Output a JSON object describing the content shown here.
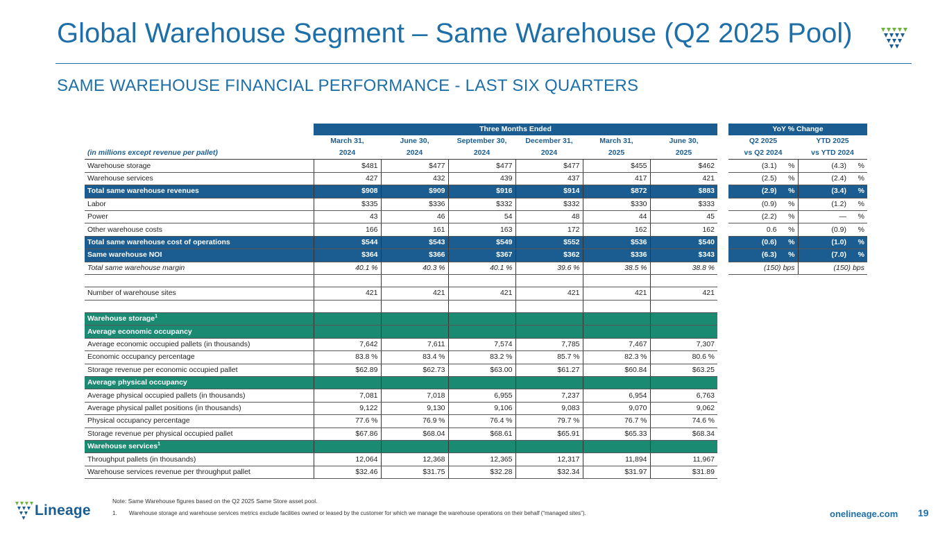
{
  "title": "Global Warehouse Segment – Same Warehouse (Q2 2025 Pool)",
  "subtitle": "SAME WAREHOUSE FINANCIAL PERFORMANCE - LAST SIX QUARTERS",
  "colors": {
    "primary": "#1b5d91",
    "accent": "#1a8a73",
    "logo_green": "#6cb33f"
  },
  "table": {
    "group_headers": {
      "three_months": "Three Months Ended",
      "yoy": "YoY % Change"
    },
    "label_header": "(in millions except revenue per pallet)",
    "columns": [
      {
        "line1": "March 31,",
        "line2": "2024"
      },
      {
        "line1": "June 30,",
        "line2": "2024"
      },
      {
        "line1": "September 30,",
        "line2": "2024"
      },
      {
        "line1": "December 31,",
        "line2": "2024"
      },
      {
        "line1": "March 31,",
        "line2": "2025"
      },
      {
        "line1": "June 30,",
        "line2": "2025"
      }
    ],
    "yoy_columns": [
      {
        "line1": "Q2 2025",
        "line2": "vs Q2 2024"
      },
      {
        "line1": "YTD 2025",
        "line2": "vs YTD 2024"
      }
    ],
    "rows": [
      {
        "label": "Warehouse storage",
        "values": [
          "$481",
          "$477",
          "$477",
          "$477",
          "$455",
          "$462"
        ],
        "yoy": [
          "(3.1)",
          "(4.3)"
        ],
        "yoy_unit": "%"
      },
      {
        "label": "Warehouse services",
        "values": [
          "427",
          "432",
          "439",
          "437",
          "417",
          "421"
        ],
        "yoy": [
          "(2.5)",
          "(2.4)"
        ],
        "yoy_unit": "%"
      },
      {
        "label": "Total same warehouse revenues",
        "values": [
          "$908",
          "$909",
          "$916",
          "$914",
          "$872",
          "$883"
        ],
        "yoy": [
          "(2.9)",
          "(3.4)"
        ],
        "yoy_unit": "%",
        "style": "blue"
      },
      {
        "label": "Labor",
        "values": [
          "$335",
          "$336",
          "$332",
          "$332",
          "$330",
          "$333"
        ],
        "yoy": [
          "(0.9)",
          "(1.2)"
        ],
        "yoy_unit": "%"
      },
      {
        "label": "Power",
        "values": [
          "43",
          "46",
          "54",
          "48",
          "44",
          "45"
        ],
        "yoy": [
          "(2.2)",
          "—"
        ],
        "yoy_unit": "%"
      },
      {
        "label": "Other warehouse costs",
        "values": [
          "166",
          "161",
          "163",
          "172",
          "162",
          "162"
        ],
        "yoy": [
          "0.6",
          "(0.9)"
        ],
        "yoy_unit": "%"
      },
      {
        "label": "Total same warehouse cost of operations",
        "values": [
          "$544",
          "$543",
          "$549",
          "$552",
          "$536",
          "$540"
        ],
        "yoy": [
          "(0.6)",
          "(1.0)"
        ],
        "yoy_unit": "%",
        "style": "blue"
      },
      {
        "label": "Same warehouse NOI",
        "values": [
          "$364",
          "$366",
          "$367",
          "$362",
          "$336",
          "$343"
        ],
        "yoy": [
          "(6.3)",
          "(7.0)"
        ],
        "yoy_unit": "%",
        "style": "blue"
      },
      {
        "label": "Total same warehouse margin",
        "values": [
          "40.1",
          "40.3",
          "40.1",
          "39.6",
          "38.5",
          "38.8"
        ],
        "unit": "%",
        "yoy": [
          "(150)",
          "(150)"
        ],
        "yoy_unit": "bps",
        "style": "italic"
      },
      {
        "label": "",
        "values": [
          "",
          "",
          "",
          "",
          "",
          ""
        ],
        "style": "blank"
      },
      {
        "label": "Number of warehouse sites",
        "values": [
          "421",
          "421",
          "421",
          "421",
          "421",
          "421"
        ]
      },
      {
        "label": "",
        "values": [
          "",
          "",
          "",
          "",
          "",
          ""
        ],
        "style": "blank"
      },
      {
        "label": "Warehouse storage",
        "sup": "1",
        "values": [
          "",
          "",
          "",
          "",
          "",
          ""
        ],
        "style": "green"
      },
      {
        "label": "Average economic occupancy",
        "values": [
          "",
          "",
          "",
          "",
          "",
          ""
        ],
        "style": "green"
      },
      {
        "label": "Average economic occupied pallets (in thousands)",
        "values": [
          "7,642",
          "7,611",
          "7,574",
          "7,785",
          "7,467",
          "7,307"
        ]
      },
      {
        "label": "Economic occupancy percentage",
        "values": [
          "83.8",
          "83.4",
          "83.2",
          "85.7",
          "82.3",
          "80.6"
        ],
        "unit": "%"
      },
      {
        "label": "Storage revenue per economic occupied pallet",
        "values": [
          "$62.89",
          "$62.73",
          "$63.00",
          "$61.27",
          "$60.84",
          "$63.25"
        ]
      },
      {
        "label": "Average physical occupancy",
        "values": [
          "",
          "",
          "",
          "",
          "",
          ""
        ],
        "style": "green"
      },
      {
        "label": "Average physical occupied pallets (in thousands)",
        "values": [
          "7,081",
          "7,018",
          "6,955",
          "7,237",
          "6,954",
          "6,763"
        ]
      },
      {
        "label": "Average physical pallet positions (in thousands)",
        "values": [
          "9,122",
          "9,130",
          "9,106",
          "9,083",
          "9,070",
          "9,062"
        ]
      },
      {
        "label": "Physical occupancy percentage",
        "values": [
          "77.6",
          "76.9",
          "76.4",
          "79.7",
          "76.7",
          "74.6"
        ],
        "unit": "%"
      },
      {
        "label": "Storage revenue per physical occupied pallet",
        "values": [
          "$67.86",
          "$68.04",
          "$68.61",
          "$65.91",
          "$65.33",
          "$68.34"
        ]
      },
      {
        "label": "Warehouse services",
        "sup": "1",
        "values": [
          "",
          "",
          "",
          "",
          "",
          ""
        ],
        "style": "green"
      },
      {
        "label": "Throughput pallets (in thousands)",
        "values": [
          "12,064",
          "12,368",
          "12,365",
          "12,317",
          "11,894",
          "11,967"
        ]
      },
      {
        "label": "Warehouse services revenue per throughput pallet",
        "values": [
          "$32.46",
          "$31.75",
          "$32.28",
          "$32.34",
          "$31.97",
          "$31.89"
        ]
      }
    ]
  },
  "footer": {
    "note": "Note: Same Warehouse figures based on the Q2 2025 Same Store asset pool.",
    "footnote_num": "1.",
    "footnote": "Warehouse storage and warehouse services metrics exclude facilities owned or leased by the customer for which we manage the warehouse operations on their behalf (“managed sites”).",
    "brand": "Lineage",
    "url": "onelineage.com",
    "page": "19"
  }
}
